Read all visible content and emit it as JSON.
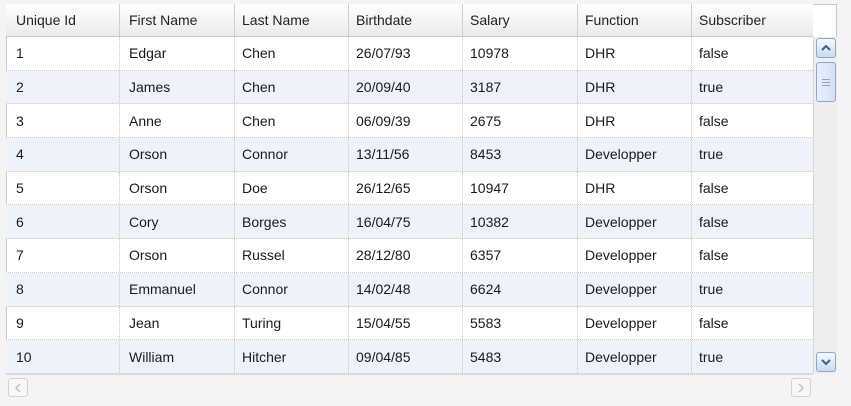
{
  "table": {
    "columns": [
      "Unique Id",
      "First Name",
      "Last Name",
      "Birthdate",
      "Salary",
      "Function",
      "Subscriber"
    ],
    "rows": [
      [
        "1",
        "Edgar",
        "Chen",
        "26/07/93",
        "10978",
        "DHR",
        "false"
      ],
      [
        "2",
        "James",
        "Chen",
        "20/09/40",
        "3187",
        "DHR",
        "true"
      ],
      [
        "3",
        "Anne",
        "Chen",
        "06/09/39",
        "2675",
        "DHR",
        "false"
      ],
      [
        "4",
        "Orson",
        "Connor",
        "13/11/56",
        "8453",
        "Developper",
        "true"
      ],
      [
        "5",
        "Orson",
        "Doe",
        "26/12/65",
        "10947",
        "DHR",
        "false"
      ],
      [
        "6",
        "Cory",
        "Borges",
        "16/04/75",
        "10382",
        "Developper",
        "false"
      ],
      [
        "7",
        "Orson",
        "Russel",
        "28/12/80",
        "6357",
        "Developper",
        "false"
      ],
      [
        "8",
        "Emmanuel",
        "Connor",
        "14/02/48",
        "6624",
        "Developper",
        "true"
      ],
      [
        "9",
        "Jean",
        "Turing",
        "15/04/55",
        "5583",
        "Developper",
        "false"
      ],
      [
        "10",
        "William",
        "Hitcher",
        "09/04/85",
        "5483",
        "Developper",
        "true"
      ]
    ]
  },
  "icons": {
    "scroll_up": "chevron-up-icon",
    "scroll_down": "chevron-down-icon",
    "scroll_left": "chevron-left-icon",
    "scroll_right": "chevron-right-icon",
    "thumb_grip": "grip-icon"
  },
  "colors": {
    "alt_row": "#eef3fb",
    "scroll_accent": "#8ea6c8",
    "grid_line": "#cfc8b8"
  }
}
